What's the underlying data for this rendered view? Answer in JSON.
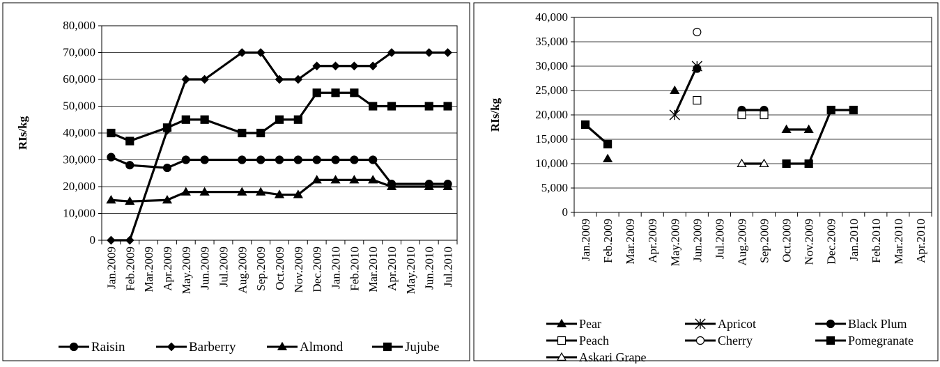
{
  "chart_data": [
    {
      "type": "line",
      "title": "",
      "xlabel": "",
      "ylabel": "RIs/kg",
      "ylim": [
        0,
        80000
      ],
      "yticks": [
        0,
        10000,
        20000,
        30000,
        40000,
        50000,
        60000,
        70000,
        80000
      ],
      "ytick_labels": [
        "0",
        "10,000",
        "20,000",
        "30,000",
        "40,000",
        "50,000",
        "60,000",
        "70,000",
        "80,000"
      ],
      "grid": "horizontal",
      "legend_position": "bottom",
      "categories": [
        "Jan.2009",
        "Feb.2009",
        "Mar.2009",
        "Apr.2009",
        "May.2009",
        "Jun.2009",
        "Jul.2009",
        "Aug.2009",
        "Sep.2009",
        "Oct.2009",
        "Nov.2009",
        "Dec.2009",
        "Jan.2010",
        "Feb.2010",
        "Mar.2010",
        "Apr.2010",
        "May.2010",
        "Jun.2010",
        "Jul.2010"
      ],
      "series": [
        {
          "name": "Raisin",
          "marker": "circle",
          "values": [
            31000,
            28000,
            null,
            27000,
            30000,
            30000,
            null,
            30000,
            30000,
            30000,
            30000,
            30000,
            30000,
            30000,
            30000,
            21000,
            null,
            21000,
            21000
          ]
        },
        {
          "name": "Barberry",
          "marker": "diamond",
          "values": [
            0,
            0,
            null,
            41000,
            60000,
            60000,
            null,
            70000,
            70000,
            60000,
            60000,
            65000,
            65000,
            65000,
            65000,
            70000,
            null,
            70000,
            70000
          ]
        },
        {
          "name": "Almond",
          "marker": "triangle",
          "values": [
            15000,
            14500,
            null,
            15000,
            18000,
            18000,
            null,
            18000,
            18000,
            17000,
            17000,
            22500,
            22500,
            22500,
            22500,
            20000,
            null,
            20000,
            20000
          ]
        },
        {
          "name": "Jujube",
          "marker": "square",
          "values": [
            40000,
            37000,
            null,
            42000,
            45000,
            45000,
            null,
            40000,
            40000,
            45000,
            45000,
            55000,
            55000,
            55000,
            50000,
            50000,
            null,
            50000,
            50000
          ]
        }
      ]
    },
    {
      "type": "line",
      "title": "",
      "xlabel": "",
      "ylabel": "RIs/kg",
      "ylim": [
        0,
        40000
      ],
      "yticks": [
        0,
        5000,
        10000,
        15000,
        20000,
        25000,
        30000,
        35000,
        40000
      ],
      "ytick_labels": [
        "0",
        "5,000",
        "10,000",
        "15,000",
        "20,000",
        "25,000",
        "30,000",
        "35,000",
        "40,000"
      ],
      "grid": "horizontal",
      "legend_position": "bottom",
      "categories": [
        "Jan.2009",
        "Feb.2009",
        "Mar.2009",
        "Apr.2009",
        "May.2009",
        "Jun.2009",
        "Jul.2009",
        "Aug.2009",
        "Sep.2009",
        "Oct.2009",
        "Nov.2009",
        "Dec.2009",
        "Jan.2010",
        "Feb.2010",
        "Mar.2010",
        "Apr.2010"
      ],
      "series": [
        {
          "name": "Pear",
          "marker": "triangle",
          "filled": true,
          "line": true,
          "values": [
            null,
            11000,
            null,
            null,
            25000,
            null,
            null,
            null,
            null,
            17000,
            17000,
            null,
            null,
            null,
            null,
            null
          ]
        },
        {
          "name": "Apricot",
          "marker": "asterisk",
          "filled": false,
          "line": true,
          "values": [
            null,
            null,
            null,
            null,
            20000,
            30000,
            null,
            null,
            null,
            null,
            null,
            null,
            null,
            null,
            null,
            null
          ]
        },
        {
          "name": "Black Plum",
          "marker": "circle",
          "filled": true,
          "line": true,
          "values": [
            null,
            null,
            null,
            null,
            null,
            29500,
            null,
            21000,
            21000,
            null,
            null,
            null,
            null,
            null,
            null,
            null
          ]
        },
        {
          "name": "Peach",
          "marker": "square",
          "filled": false,
          "line": false,
          "values": [
            null,
            null,
            null,
            null,
            null,
            23000,
            null,
            20000,
            20000,
            null,
            null,
            null,
            null,
            null,
            null,
            null
          ]
        },
        {
          "name": "Cherry",
          "marker": "circle",
          "filled": false,
          "line": false,
          "values": [
            null,
            null,
            null,
            null,
            null,
            37000,
            null,
            null,
            null,
            null,
            null,
            null,
            null,
            null,
            null,
            null
          ]
        },
        {
          "name": "Pomegranate",
          "marker": "square",
          "filled": true,
          "line": true,
          "values": [
            18000,
            14000,
            null,
            null,
            null,
            null,
            null,
            null,
            null,
            10000,
            10000,
            21000,
            21000,
            null,
            null,
            null
          ]
        },
        {
          "name": "Askari Grape",
          "marker": "triangle",
          "filled": false,
          "line": true,
          "values": [
            null,
            null,
            null,
            null,
            null,
            null,
            null,
            10000,
            10000,
            null,
            null,
            null,
            null,
            null,
            null,
            null
          ]
        }
      ]
    }
  ]
}
